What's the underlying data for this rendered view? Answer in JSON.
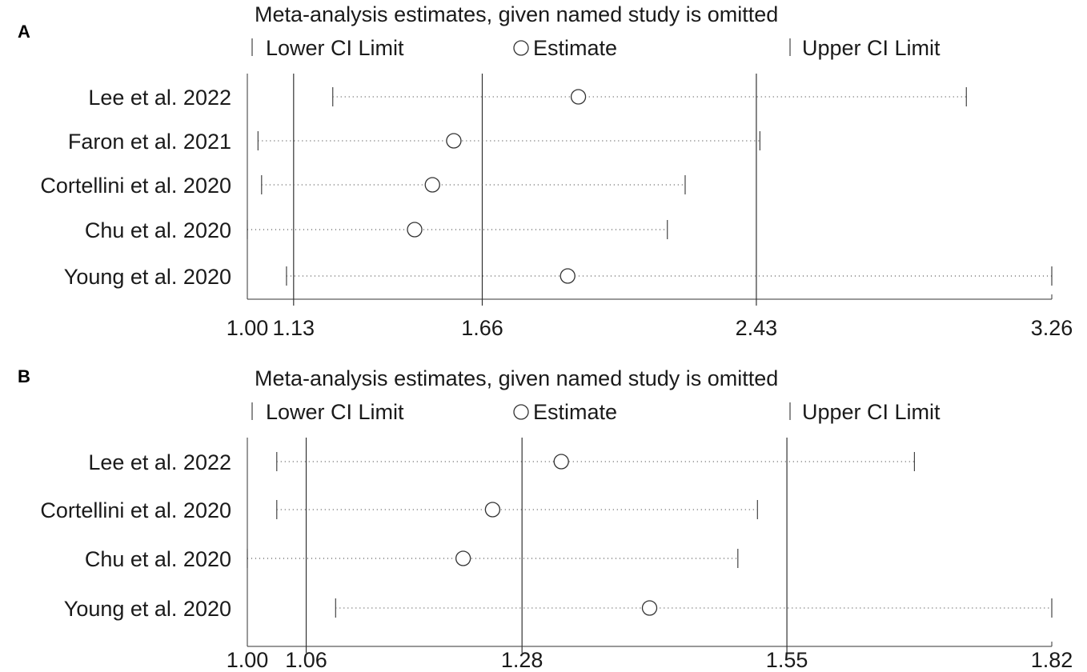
{
  "chart_data": [
    {
      "type": "forest",
      "panel": "A",
      "title": "Meta-analysis estimates, given named study is omitted",
      "legend": {
        "lower": "Lower CI Limit",
        "estimate": "Estimate",
        "upper": "Upper CI Limit"
      },
      "xlim": [
        1.0,
        3.26
      ],
      "tick_values": [
        1.0,
        1.13,
        1.66,
        2.43,
        3.26
      ],
      "tick_labels": [
        "1.00",
        "1.13",
        "1.66",
        "2.43",
        "3.26"
      ],
      "reference_lines": [
        1.13,
        1.66,
        2.43
      ],
      "studies": [
        {
          "name": "Lee et al. 2022",
          "lower": 1.24,
          "estimate": 1.93,
          "upper": 3.02
        },
        {
          "name": "Faron et al. 2021",
          "lower": 1.03,
          "estimate": 1.58,
          "upper": 2.44
        },
        {
          "name": "Cortellini et al. 2020",
          "lower": 1.04,
          "estimate": 1.52,
          "upper": 2.23
        },
        {
          "name": "Chu et al. 2020",
          "lower": 1.0,
          "estimate": 1.47,
          "upper": 2.18
        },
        {
          "name": "Young et al. 2020",
          "lower": 1.11,
          "estimate": 1.9,
          "upper": 3.26
        }
      ]
    },
    {
      "type": "forest",
      "panel": "B",
      "title": "Meta-analysis estimates, given named study is omitted",
      "legend": {
        "lower": "Lower CI Limit",
        "estimate": "Estimate",
        "upper": "Upper CI Limit"
      },
      "xlim": [
        1.0,
        1.82
      ],
      "tick_values": [
        1.0,
        1.06,
        1.28,
        1.55,
        1.82
      ],
      "tick_labels": [
        "1.00",
        "1.06",
        "1.28",
        "1.55",
        "1.82"
      ],
      "reference_lines": [
        1.06,
        1.28,
        1.55
      ],
      "studies": [
        {
          "name": "Lee et al. 2022",
          "lower": 1.03,
          "estimate": 1.32,
          "upper": 1.68
        },
        {
          "name": "Cortellini et al. 2020",
          "lower": 1.03,
          "estimate": 1.25,
          "upper": 1.52
        },
        {
          "name": "Chu et al. 2020",
          "lower": 1.0,
          "estimate": 1.22,
          "upper": 1.5
        },
        {
          "name": "Young et al. 2020",
          "lower": 1.09,
          "estimate": 1.41,
          "upper": 1.82
        }
      ]
    }
  ]
}
